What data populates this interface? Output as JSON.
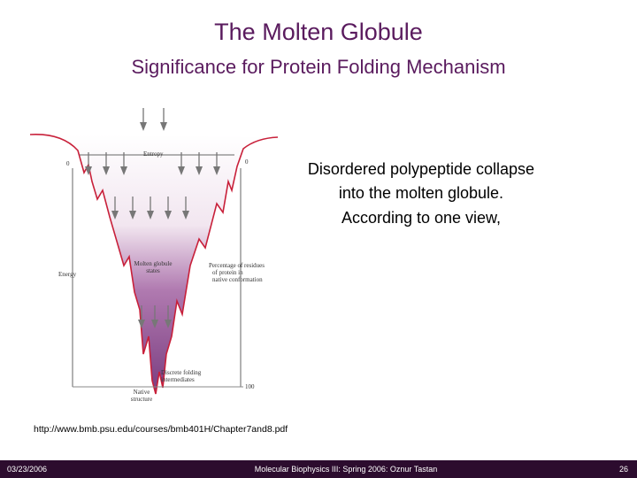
{
  "header": {
    "title": "The Molten Globule",
    "subtitle": "Significance for Protein Folding Mechanism"
  },
  "figure": {
    "entropy": "Entropy",
    "energy": "Energy",
    "molten": [
      "Molten globule",
      "states"
    ],
    "percentage": [
      "Percentage of residues",
      "of protein in",
      "native conformation"
    ],
    "zero": "0",
    "hundred": "100",
    "intermediates": [
      "Discrete folding",
      "intermediates"
    ],
    "native": [
      "Native",
      "structure"
    ]
  },
  "body": {
    "lines": [
      "Disordered polypeptide collapse",
      "into the molten globule.",
      "According to one view,"
    ]
  },
  "source": "http://www.bmb.psu.edu/courses/bmb401H/Chapter7and8.pdf",
  "footer": {
    "date": "03/23/2006",
    "course": "Molecular Biophysics III: Spring 2006: Oznur Tastan",
    "page": "26"
  }
}
